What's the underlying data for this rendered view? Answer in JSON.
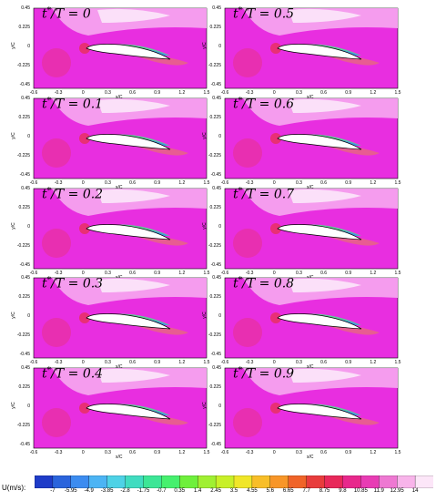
{
  "panels": [
    {
      "t": "0"
    },
    {
      "t": "0.5"
    },
    {
      "t": "0.1"
    },
    {
      "t": "0.6"
    },
    {
      "t": "0.2"
    },
    {
      "t": "0.7"
    },
    {
      "t": "0.3"
    },
    {
      "t": "0.8"
    },
    {
      "t": "0.4"
    },
    {
      "t": "0.9"
    }
  ],
  "label_prefix": "t",
  "label_sup": "*",
  "label_mid": "/T = ",
  "axis": {
    "ylabel": "y/C",
    "xlabel": "x/C",
    "yticks": [
      "0.45",
      "0.225",
      "0",
      "-0.225",
      "-0.45"
    ],
    "xticks": [
      "-0.6",
      "-0.3",
      "0",
      "0.3",
      "0.6",
      "0.9",
      "1.2",
      "1.5"
    ]
  },
  "colorbar": {
    "title": "U(m/s):",
    "ticks": [
      "-7",
      "-5.95",
      "-4.9",
      "-3.85",
      "-2.8",
      "-1.75",
      "-0.7",
      "0.35",
      "1.4",
      "2.45",
      "3.5",
      "4.55",
      "5.6",
      "6.65",
      "7.7",
      "8.75",
      "9.8",
      "10.85",
      "11.9",
      "12.95",
      "14"
    ],
    "colors": [
      "#1e3cc8",
      "#2a64dc",
      "#3c8cf0",
      "#4cb4f4",
      "#4ed2e6",
      "#40dcc0",
      "#3ce696",
      "#46f06e",
      "#6ef03c",
      "#a0f032",
      "#c8f028",
      "#f0e628",
      "#f8be28",
      "#f89628",
      "#f06428",
      "#e83c3c",
      "#e8285a",
      "#e8288c",
      "#e83cb4",
      "#ee78d2",
      "#f8b4ea",
      "#fce6f8"
    ]
  },
  "colors": {
    "background": "#e82ee0",
    "light": "#f6a8f0",
    "white": "#fce8fa",
    "red": "#e8305a"
  }
}
